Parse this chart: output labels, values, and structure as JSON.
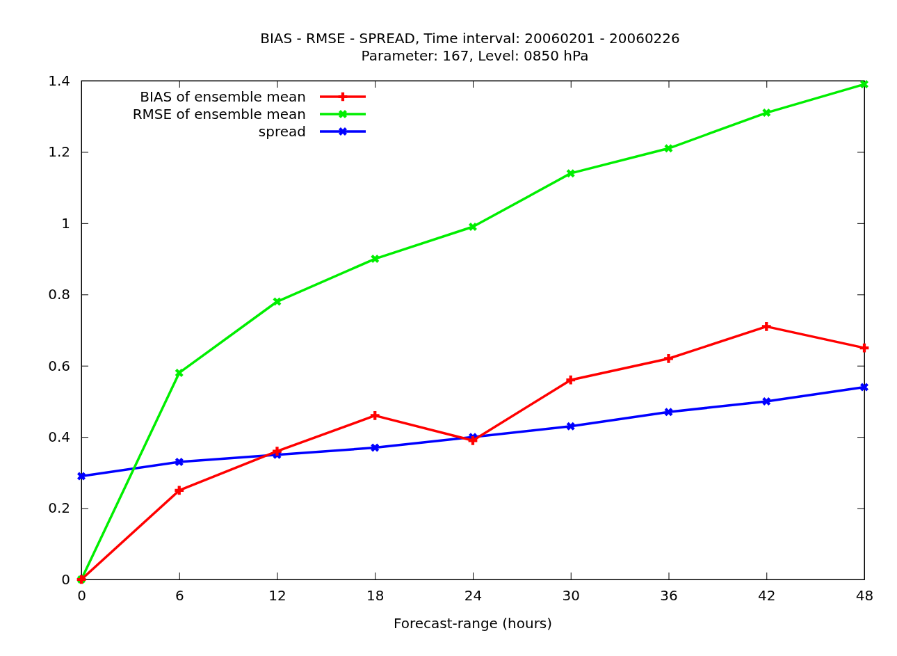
{
  "chart_data": {
    "type": "line",
    "title": "BIAS - RMSE - SPREAD, Time interval: 20060201 - 20060226",
    "subtitle": "Parameter: 167, Level: 0850 hPa",
    "xlabel": "Forecast-range (hours)",
    "x": [
      0,
      6,
      12,
      18,
      24,
      30,
      36,
      42,
      48
    ],
    "series": [
      {
        "name": "BIAS of ensemble mean",
        "color": "#ff0000",
        "values": [
          0,
          0.25,
          0.36,
          0.46,
          0.39,
          0.56,
          0.62,
          0.71,
          0.65
        ]
      },
      {
        "name": "RMSE of ensemble mean",
        "color": "#00ee00",
        "values": [
          0,
          0.58,
          0.78,
          0.9,
          0.99,
          1.14,
          1.21,
          1.31,
          1.39
        ]
      },
      {
        "name": "spread",
        "color": "#0000ff",
        "values": [
          0.29,
          0.33,
          0.35,
          0.37,
          0.4,
          0.43,
          0.47,
          0.5,
          0.54
        ]
      }
    ],
    "xlim": [
      0,
      48
    ],
    "xticks": [
      0,
      6,
      12,
      18,
      24,
      30,
      36,
      42,
      48
    ],
    "ylim": [
      0,
      1.4
    ],
    "yticks": [
      0,
      0.2,
      0.4,
      0.6,
      0.8,
      1,
      1.2,
      1.4
    ],
    "grid": false,
    "legend": "top left",
    "marker": "cross",
    "line_style": "solid"
  }
}
